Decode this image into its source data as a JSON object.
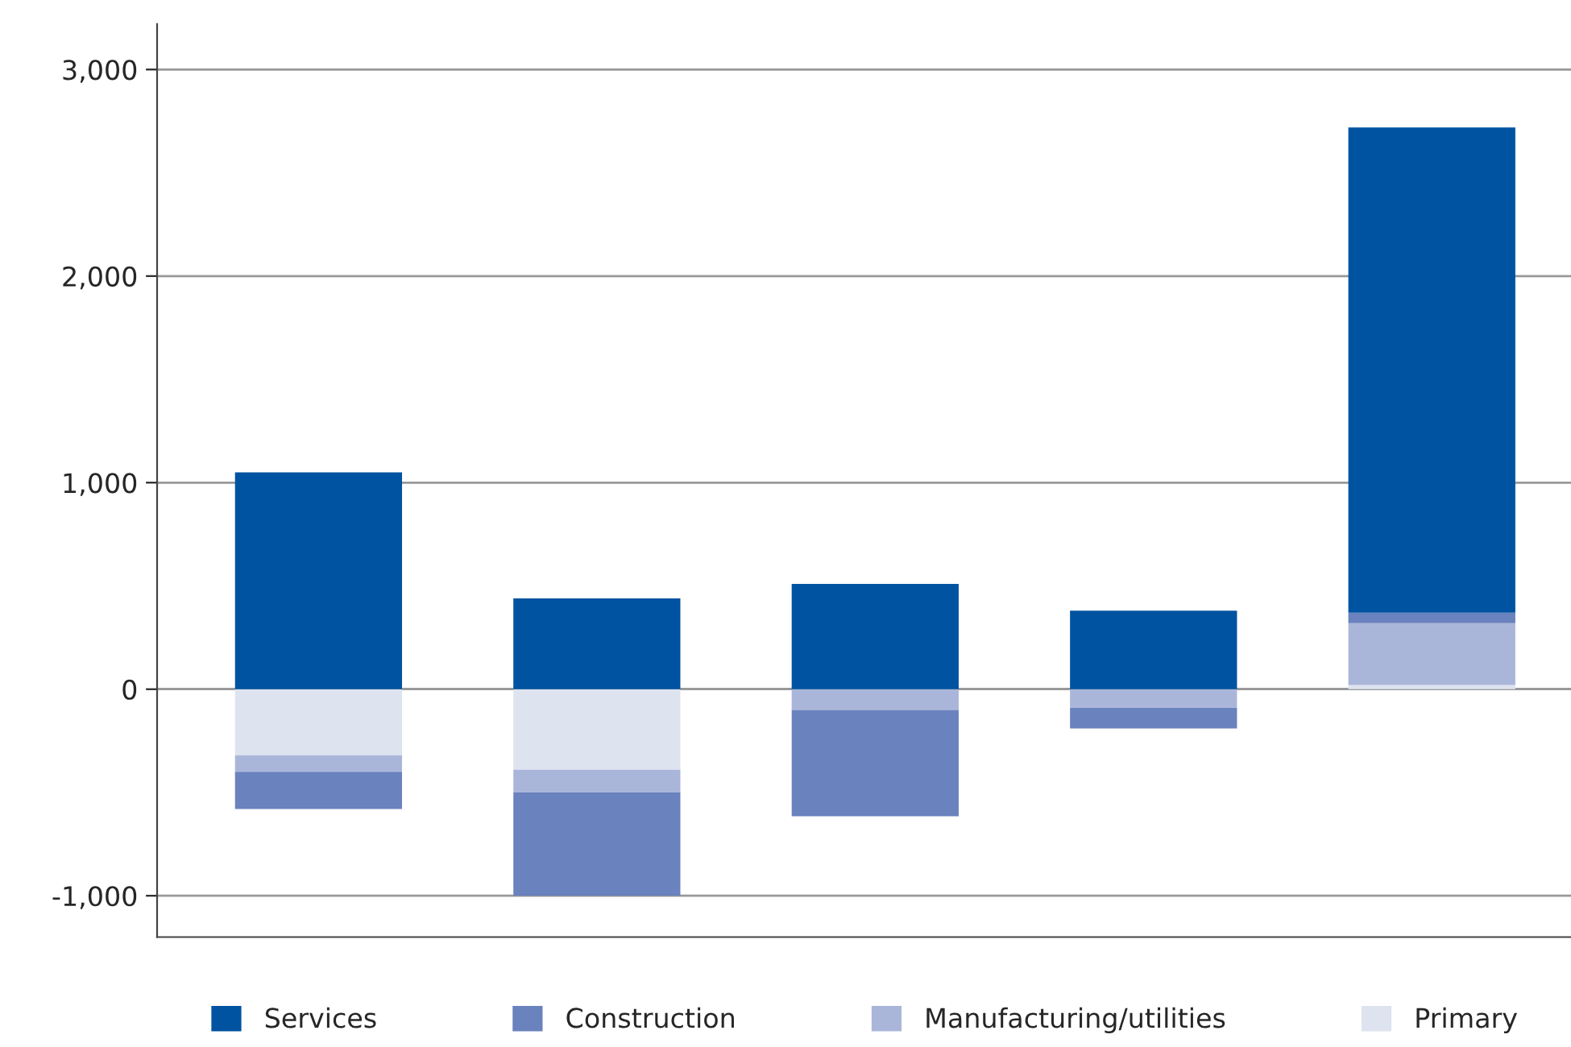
{
  "chart_data": {
    "type": "bar",
    "stacked": true,
    "categories": [
      null,
      null,
      null,
      null,
      null
    ],
    "series": [
      {
        "name": "Primary",
        "color": "#dde3ef",
        "values": [
          -320,
          -390,
          0,
          0,
          20
        ]
      },
      {
        "name": "Manufacturing/utilities",
        "color": "#aab6d9",
        "values": [
          -80,
          -110,
          -100,
          -90,
          300
        ]
      },
      {
        "name": "Construction",
        "color": "#6a82bd",
        "values": [
          -180,
          -500,
          -515,
          -100,
          50
        ]
      },
      {
        "name": "Services",
        "color": "#0053a0",
        "values": [
          1050,
          440,
          510,
          380,
          2350
        ]
      }
    ],
    "ylim": [
      -1200,
      3220
    ],
    "yticks": [
      {
        "value": -1000,
        "label": "-1,000"
      },
      0,
      {
        "value": 1000,
        "label": "1,000"
      },
      {
        "value": 2000,
        "label": "2,000"
      },
      {
        "value": 3000,
        "label": "3,000"
      }
    ],
    "grid": "y",
    "legend": "bottom"
  }
}
